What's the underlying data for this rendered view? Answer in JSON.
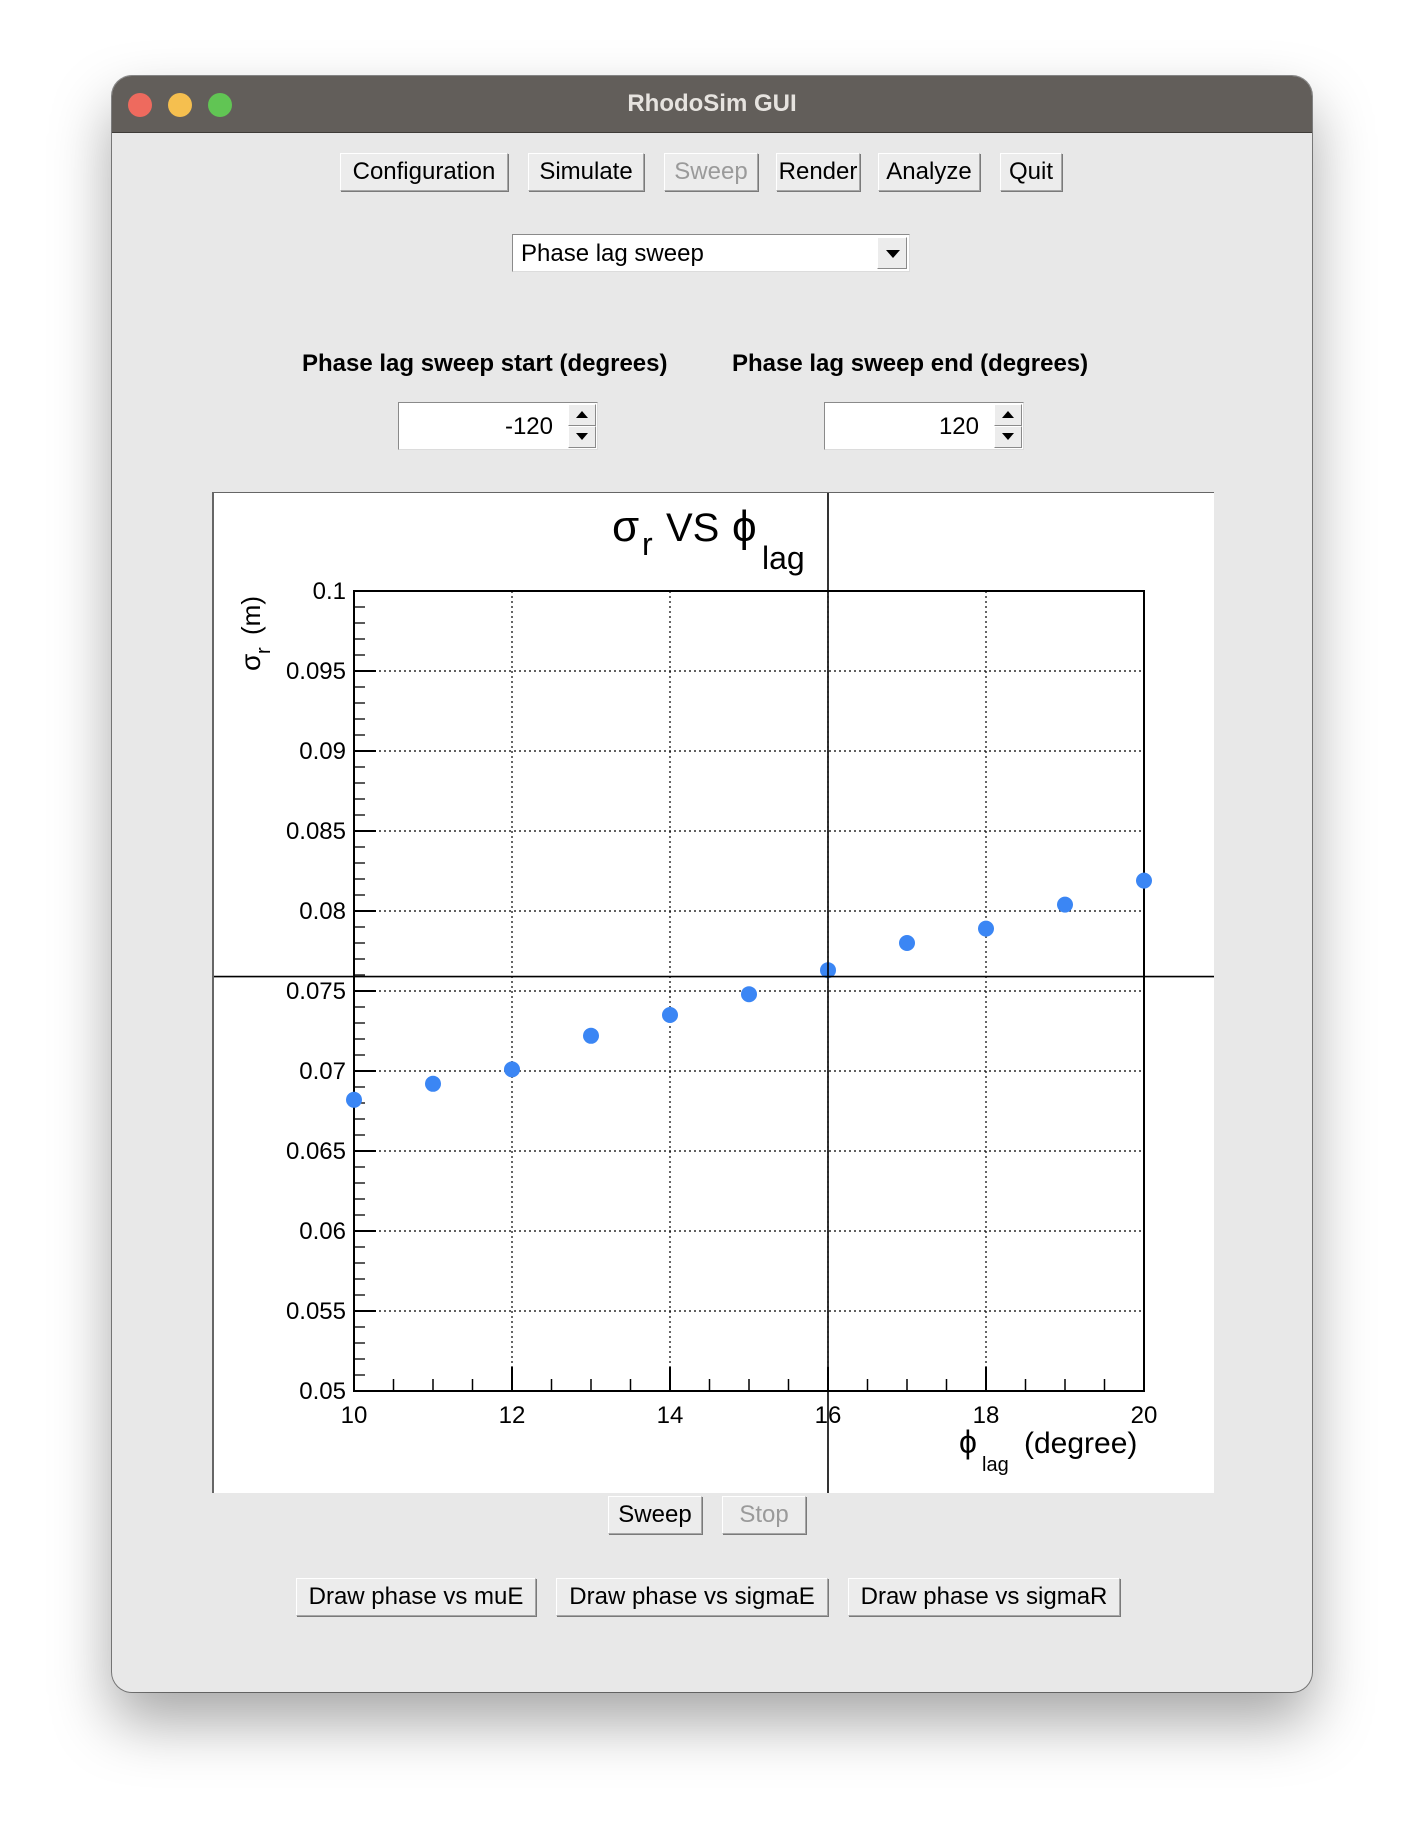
{
  "window": {
    "title": "RhodoSim GUI"
  },
  "toolbar": [
    {
      "label": "Configuration",
      "enabled": true
    },
    {
      "label": "Simulate",
      "enabled": true
    },
    {
      "label": "Sweep",
      "enabled": false
    },
    {
      "label": "Render",
      "enabled": true
    },
    {
      "label": "Analyze",
      "enabled": true
    },
    {
      "label": "Quit",
      "enabled": true
    }
  ],
  "sweep_type": {
    "selected": "Phase lag sweep"
  },
  "sweep_start": {
    "label": "Phase lag sweep start (degrees)",
    "value": "-120"
  },
  "sweep_end": {
    "label": "Phase lag sweep end (degrees)",
    "value": "120"
  },
  "chart_data": {
    "type": "scatter",
    "title_main": "σ",
    "title_main_sub": "r",
    "title_mid": "VS",
    "title_phi": "ϕ",
    "title_phi_sub": "lag",
    "xlabel_phi": "ϕ",
    "xlabel_sub": "lag",
    "xlabel_unit": "(degree)",
    "ylabel_sigma": "σ",
    "ylabel_sub": "r",
    "ylabel_unit": "(m)",
    "xlim": [
      10,
      20
    ],
    "ylim": [
      0.05,
      0.1
    ],
    "xticks": [
      10,
      12,
      14,
      16,
      18,
      20
    ],
    "xtick_labels": [
      "10",
      "12",
      "14",
      "16",
      "18",
      "20"
    ],
    "yticks": [
      0.05,
      0.055,
      0.06,
      0.065,
      0.07,
      0.075,
      0.08,
      0.085,
      0.09,
      0.095,
      0.1
    ],
    "ytick_labels": [
      "0.05",
      "0.055",
      "0.06",
      "0.065",
      "0.07",
      "0.075",
      "0.08",
      "0.085",
      "0.09",
      "0.095",
      "0.1"
    ],
    "grid": true,
    "marker_color": "#3b86f4",
    "crosshair": {
      "x": 16,
      "y": 0.0759
    },
    "x": [
      10,
      11,
      12,
      13,
      14,
      15,
      16,
      17,
      18,
      19,
      20
    ],
    "y": [
      0.0682,
      0.0692,
      0.0701,
      0.0722,
      0.0735,
      0.0748,
      0.0763,
      0.078,
      0.0789,
      0.0804,
      0.0819
    ]
  },
  "sweep_controls": {
    "sweep_label": "Sweep",
    "stop_label": "Stop"
  },
  "draw_buttons": {
    "mue": "Draw phase vs muE",
    "sigmae": "Draw phase vs sigmaE",
    "sigmar": "Draw phase vs sigmaR"
  }
}
